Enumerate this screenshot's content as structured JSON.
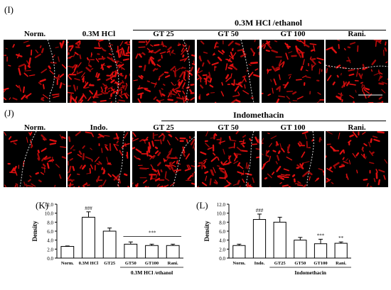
{
  "panel_I": {
    "label": "(I)",
    "group_label": "0.3M HCl /ethanol",
    "headers": [
      "Norm.",
      "0.3M HCl",
      "GT 25",
      "GT 50",
      "GT 100",
      "Rani."
    ]
  },
  "panel_J": {
    "label": "(J)",
    "group_label": "Indomethacin",
    "headers": [
      "Norm.",
      "Indo.",
      "GT 25",
      "GT 50",
      "GT 100",
      "Rani."
    ]
  },
  "chart_data": [
    {
      "panel": "(K)",
      "type": "bar",
      "categories": [
        "Norm.",
        "0.3M HCl",
        "GT25",
        "GT50",
        "GT100",
        "Rani."
      ],
      "values": [
        2.6,
        9.1,
        6.0,
        3.1,
        2.8,
        2.8
      ],
      "errors": [
        0.1,
        1.2,
        0.7,
        0.5,
        0.3,
        0.3
      ],
      "annotations": [
        {
          "category": "0.3M HCl",
          "text": "###"
        }
      ],
      "bracket_annotation": {
        "text": "***",
        "from": "GT50",
        "to": "Rani."
      },
      "group_label": "0.3M HCl /ethanol",
      "ylabel": "Density",
      "ylim": [
        0,
        12
      ],
      "yticks": [
        "0.0",
        "2.0",
        "4.0",
        "6.0",
        "8.0",
        "10.0",
        "12.0"
      ]
    },
    {
      "panel": "(L)",
      "type": "bar",
      "categories": [
        "Norm.",
        "Indo.",
        "GT25",
        "GT50",
        "GT100",
        "Rani."
      ],
      "values": [
        2.8,
        8.6,
        8.0,
        4.0,
        3.2,
        3.3
      ],
      "errors": [
        0.3,
        1.2,
        1.1,
        0.6,
        1.0,
        0.3
      ],
      "annotations": [
        {
          "category": "Indo.",
          "text": "###"
        },
        {
          "category": "GT100",
          "text": "***"
        },
        {
          "category": "Rani.",
          "text": "**"
        }
      ],
      "group_label": "Indomethacin",
      "ylabel": "Density",
      "ylim": [
        0,
        12
      ],
      "yticks": [
        "0.0",
        "2.0",
        "4.0",
        "6.0",
        "8.0",
        "10.0",
        "12.0"
      ]
    }
  ]
}
